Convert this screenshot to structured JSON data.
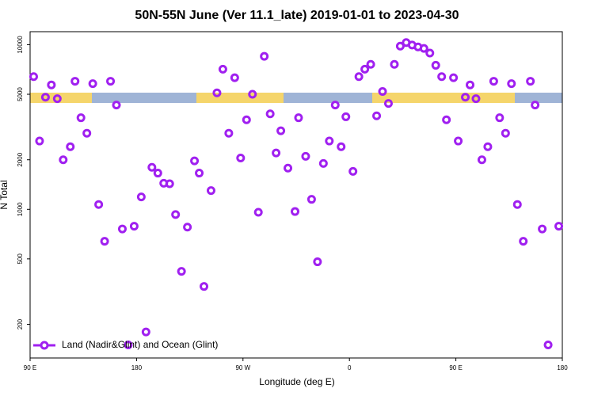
{
  "chart_data": {
    "type": "scatter",
    "title": "50N-55N June (Ver 11.1_late)   2019-01-01 to 2023-04-30",
    "x_label": "Longitude (deg E)",
    "y_label": "N Total",
    "log_y": true,
    "grid": false,
    "legend": "lower left",
    "xlim": [
      90,
      540
    ],
    "xticks": [
      {
        "value": 90,
        "label": "90 E"
      },
      180,
      {
        "value": 270,
        "label": "90 W"
      },
      {
        "value": 360,
        "label": "0"
      },
      {
        "value": 450,
        "label": "90 E"
      },
      180
    ],
    "ylim": [
      125,
      12000
    ],
    "yticks": [
      200,
      500,
      1000,
      2000,
      5000,
      10000
    ],
    "series": [
      {
        "name": "Land (Nadir&Glint) and Ocean (Glint)",
        "color": "#a020f0",
        "x": [
          93,
          98,
          103,
          108,
          113,
          118,
          124,
          128,
          133,
          138,
          143,
          148,
          153,
          158,
          163,
          168,
          173,
          178,
          184,
          188,
          193,
          198,
          203,
          208,
          213,
          218,
          223,
          229,
          233,
          237,
          243,
          248,
          253,
          258,
          263,
          268,
          273,
          278,
          283,
          288,
          293,
          298,
          302,
          308,
          314,
          317,
          323,
          328,
          333,
          338,
          343,
          348,
          353,
          357,
          363,
          368,
          373,
          378,
          383,
          388,
          393,
          398,
          403,
          408,
          413,
          418,
          423,
          428,
          433,
          438,
          442,
          448,
          452,
          458,
          462,
          467,
          472,
          477,
          482,
          487,
          492,
          497,
          502,
          507,
          513,
          517,
          523,
          528,
          537
        ],
        "values": [
          6400,
          2600,
          4800,
          5700,
          4700,
          2000,
          2400,
          6000,
          3600,
          2900,
          5800,
          1070,
          640,
          6000,
          4300,
          760,
          150,
          790,
          1190,
          180,
          1800,
          1660,
          1440,
          1430,
          930,
          420,
          780,
          1970,
          1660,
          340,
          1300,
          5100,
          7100,
          2900,
          6300,
          2050,
          3500,
          5000,
          960,
          8500,
          3800,
          2200,
          3000,
          1780,
          970,
          3600,
          2100,
          1150,
          480,
          1900,
          2600,
          4300,
          2400,
          3650,
          1700,
          6400,
          7100,
          7600,
          3700,
          5200,
          4400,
          7600,
          9800,
          10300,
          9950,
          9700,
          9500,
          8900,
          7500,
          6400,
          3500,
          6300,
          2600,
          4800,
          5700,
          4700,
          2000,
          2400,
          6000,
          3600,
          2900,
          5800,
          1070,
          640,
          6000,
          4300,
          760,
          150,
          790
        ]
      }
    ]
  }
}
